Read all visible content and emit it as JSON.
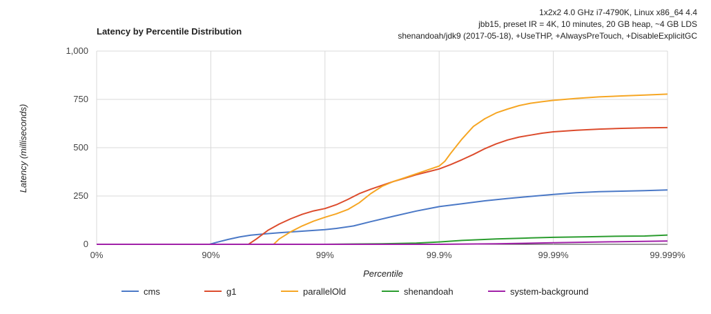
{
  "chart_data": {
    "type": "line",
    "title": "Latency by Percentile Distribution",
    "subtitle_lines": [
      "1x2x2 4.0 GHz i7-4790K, Linux x86_64 4.4",
      "jbb15, preset IR = 4K, 10 minutes, 20 GB heap, ~4 GB LDS",
      "shenandoah/jdk9 (2017-05-18), +UseTHP, +AlwaysPreTouch, +DisableExplicitGC"
    ],
    "xlabel": "Percentile",
    "ylabel": "Latency (milliseconds)",
    "x_scale": "nines",
    "x_ticks": [
      {
        "label": "0%",
        "nines": 0
      },
      {
        "label": "90%",
        "nines": 1
      },
      {
        "label": "99%",
        "nines": 2
      },
      {
        "label": "99.9%",
        "nines": 3
      },
      {
        "label": "99.99%",
        "nines": 4
      },
      {
        "label": "99.999%",
        "nines": 5
      }
    ],
    "xlim": [
      0,
      5
    ],
    "ylim": [
      0,
      1000
    ],
    "y_ticks": [
      {
        "label": "0",
        "value": 0
      },
      {
        "label": "250",
        "value": 250
      },
      {
        "label": "500",
        "value": 500
      },
      {
        "label": "750",
        "value": 750
      },
      {
        "label": "1,000",
        "value": 1000
      }
    ],
    "grid": true,
    "legend_position": "bottom",
    "series": [
      {
        "name": "cms",
        "color": "#4a78c6",
        "points": [
          [
            0,
            0
          ],
          [
            0.99,
            0
          ],
          [
            1.05,
            10
          ],
          [
            1.15,
            25
          ],
          [
            1.25,
            38
          ],
          [
            1.35,
            47
          ],
          [
            1.45,
            53
          ],
          [
            1.6,
            60
          ],
          [
            1.8,
            68
          ],
          [
            2.0,
            76
          ],
          [
            2.1,
            82
          ],
          [
            2.25,
            95
          ],
          [
            2.4,
            117
          ],
          [
            2.6,
            145
          ],
          [
            2.8,
            172
          ],
          [
            3.0,
            195
          ],
          [
            3.2,
            210
          ],
          [
            3.4,
            225
          ],
          [
            3.6,
            237
          ],
          [
            3.8,
            248
          ],
          [
            4.0,
            258
          ],
          [
            4.2,
            267
          ],
          [
            4.4,
            272
          ],
          [
            4.6,
            275
          ],
          [
            4.8,
            278
          ],
          [
            5.0,
            281
          ]
        ]
      },
      {
        "name": "g1",
        "color": "#dc4b2c",
        "points": [
          [
            0,
            0
          ],
          [
            1.33,
            0
          ],
          [
            1.4,
            28
          ],
          [
            1.5,
            72
          ],
          [
            1.6,
            105
          ],
          [
            1.7,
            132
          ],
          [
            1.8,
            155
          ],
          [
            1.9,
            173
          ],
          [
            2.0,
            185
          ],
          [
            2.1,
            205
          ],
          [
            2.2,
            232
          ],
          [
            2.3,
            262
          ],
          [
            2.4,
            285
          ],
          [
            2.5,
            305
          ],
          [
            2.6,
            325
          ],
          [
            2.7,
            342
          ],
          [
            2.8,
            360
          ],
          [
            2.9,
            375
          ],
          [
            3.0,
            390
          ],
          [
            3.1,
            412
          ],
          [
            3.2,
            438
          ],
          [
            3.3,
            465
          ],
          [
            3.4,
            495
          ],
          [
            3.5,
            520
          ],
          [
            3.6,
            540
          ],
          [
            3.7,
            555
          ],
          [
            3.8,
            565
          ],
          [
            3.9,
            575
          ],
          [
            4.0,
            582
          ],
          [
            4.2,
            590
          ],
          [
            4.4,
            596
          ],
          [
            4.6,
            600
          ],
          [
            4.8,
            603
          ],
          [
            5.0,
            604
          ]
        ]
      },
      {
        "name": "parallelOld",
        "color": "#f6a623",
        "points": [
          [
            0,
            0
          ],
          [
            1.55,
            0
          ],
          [
            1.6,
            28
          ],
          [
            1.7,
            65
          ],
          [
            1.8,
            95
          ],
          [
            1.9,
            120
          ],
          [
            2.0,
            140
          ],
          [
            2.1,
            158
          ],
          [
            2.2,
            180
          ],
          [
            2.3,
            215
          ],
          [
            2.4,
            262
          ],
          [
            2.5,
            300
          ],
          [
            2.6,
            325
          ],
          [
            2.7,
            345
          ],
          [
            2.8,
            365
          ],
          [
            2.9,
            385
          ],
          [
            3.0,
            405
          ],
          [
            3.05,
            430
          ],
          [
            3.1,
            470
          ],
          [
            3.2,
            545
          ],
          [
            3.3,
            610
          ],
          [
            3.4,
            650
          ],
          [
            3.5,
            680
          ],
          [
            3.6,
            700
          ],
          [
            3.7,
            718
          ],
          [
            3.8,
            730
          ],
          [
            3.9,
            738
          ],
          [
            4.0,
            745
          ],
          [
            4.2,
            755
          ],
          [
            4.4,
            763
          ],
          [
            4.6,
            768
          ],
          [
            4.8,
            772
          ],
          [
            5.0,
            777
          ]
        ]
      },
      {
        "name": "shenandoah",
        "color": "#2a9c2e",
        "points": [
          [
            0,
            0
          ],
          [
            2.0,
            0
          ],
          [
            2.5,
            3
          ],
          [
            2.8,
            6
          ],
          [
            3.0,
            12
          ],
          [
            3.2,
            20
          ],
          [
            3.5,
            28
          ],
          [
            3.8,
            33
          ],
          [
            4.0,
            36
          ],
          [
            4.3,
            39
          ],
          [
            4.6,
            42
          ],
          [
            4.8,
            43
          ],
          [
            5.0,
            48
          ]
        ]
      },
      {
        "name": "system-background",
        "color": "#a020a8",
        "points": [
          [
            0,
            0
          ],
          [
            3.0,
            0
          ],
          [
            3.5,
            3
          ],
          [
            4.0,
            8
          ],
          [
            4.5,
            13
          ],
          [
            5.0,
            17
          ]
        ]
      }
    ]
  }
}
